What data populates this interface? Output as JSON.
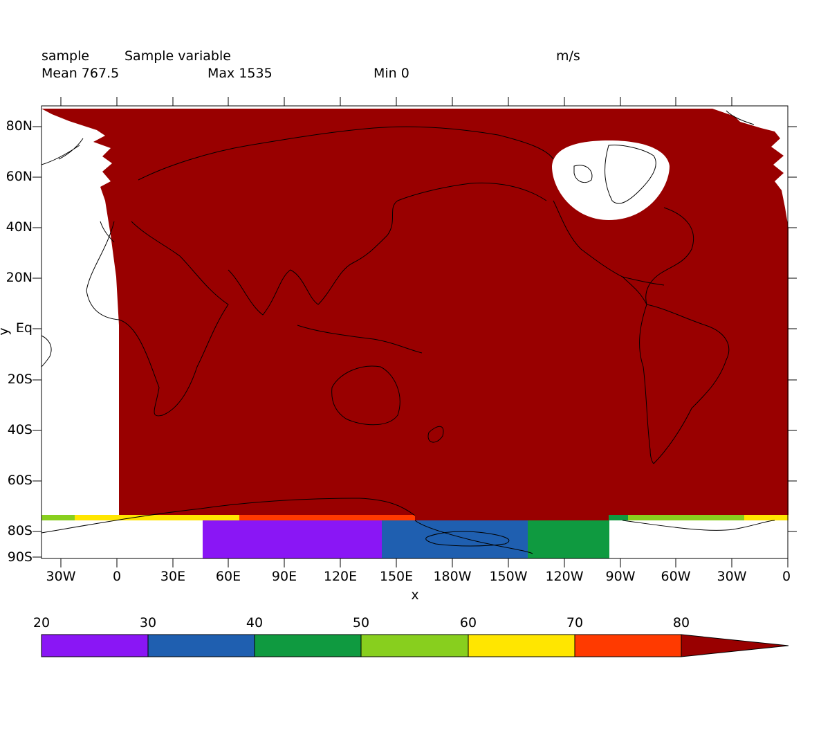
{
  "header": {
    "name": "sample",
    "long_name": "Sample variable",
    "units": "m/s",
    "mean_label": "Mean 767.5",
    "max_label": "Max 1535",
    "min_label": "Min 0"
  },
  "axes": {
    "xlabel": "x",
    "ylabel": "y",
    "x_ticks": [
      "30W",
      "0",
      "30E",
      "60E",
      "90E",
      "120E",
      "150E",
      "180W",
      "150W",
      "120W",
      "90W",
      "60W",
      "30W",
      "0"
    ],
    "y_ticks": [
      "80N",
      "60N",
      "40N",
      "20N",
      "Eq",
      "20S",
      "40S",
      "60S",
      "80S",
      "90S"
    ]
  },
  "colorbar": {
    "levels": [
      "20",
      "30",
      "40",
      "50",
      "60",
      "70",
      "80"
    ],
    "colors": [
      "#8a16f5",
      "#1f5fb0",
      "#0f9a40",
      "#88cf1e",
      "#ffe600",
      "#ff3a00",
      "#990000"
    ],
    "extend": "max"
  },
  "colors": {
    "field": "#990000",
    "band_purple": "#8a16f5",
    "band_blue": "#1f5fb0",
    "band_green": "#0f9a40",
    "band_lime": "#88cf1e",
    "band_yellow": "#ffe600",
    "band_orange": "#ff3a00"
  }
}
